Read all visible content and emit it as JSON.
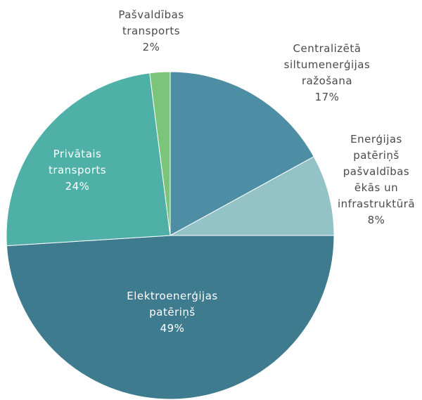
{
  "chart_data": {
    "type": "pie",
    "categories": [
      "Centralizētā siltumenerģijas ražošana",
      "Enerģijas patēriņš pašvaldības ēkās un infrastruktūrā",
      "Elektroenerģijas patēriņš",
      "Privātais transports",
      "Pašvaldības transports"
    ],
    "values": [
      17,
      8,
      49,
      24,
      2
    ],
    "value_labels": [
      "17%",
      "8%",
      "49%",
      "24%",
      "2%"
    ],
    "colors": [
      "#4d8ea4",
      "#93c2c7",
      "#3e7b8e",
      "#4eb0a7",
      "#7cc47a"
    ]
  }
}
